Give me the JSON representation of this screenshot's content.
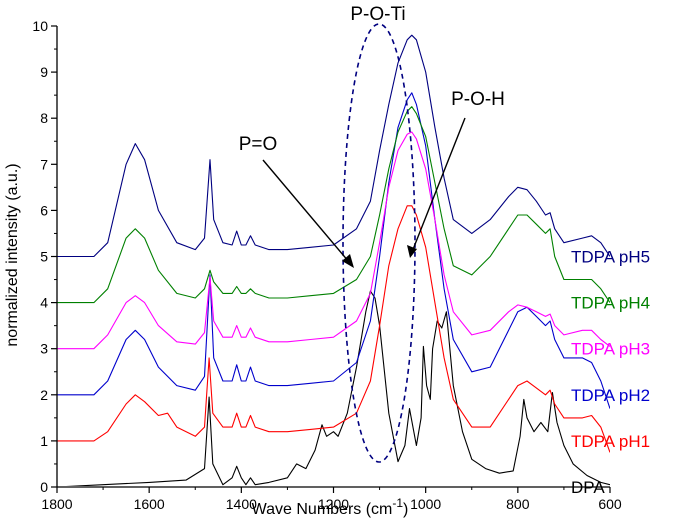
{
  "chart_data": {
    "type": "line",
    "title": "",
    "xlabel": "Wave Numbers (cm",
    "xlabel_sup": "-1",
    "xlabel_suffix": ")",
    "ylabel": "normalized intensity (a.u.)",
    "xlim": [
      1800,
      600
    ],
    "ylim": [
      0,
      10
    ],
    "x_reversed": true,
    "grid": false,
    "legend": "labels at right end of each curve",
    "xticks": [
      1800,
      1600,
      1400,
      1200,
      1000,
      800,
      600
    ],
    "yticks": [
      0,
      1,
      2,
      3,
      4,
      5,
      6,
      7,
      8,
      9,
      10
    ],
    "series": [
      {
        "name": "DPA",
        "color": "#000000",
        "offset": 0,
        "points": [
          [
            1800,
            0
          ],
          [
            1700,
            0.05
          ],
          [
            1600,
            0.1
          ],
          [
            1520,
            0.15
          ],
          [
            1480,
            0.4
          ],
          [
            1470,
            1.95
          ],
          [
            1462,
            0.5
          ],
          [
            1440,
            0.05
          ],
          [
            1420,
            0.2
          ],
          [
            1410,
            0.45
          ],
          [
            1400,
            0.2
          ],
          [
            1390,
            0.05
          ],
          [
            1380,
            0.2
          ],
          [
            1370,
            0.05
          ],
          [
            1340,
            0.1
          ],
          [
            1300,
            0.2
          ],
          [
            1280,
            0.5
          ],
          [
            1260,
            0.4
          ],
          [
            1240,
            0.8
          ],
          [
            1225,
            1.35
          ],
          [
            1215,
            1.1
          ],
          [
            1200,
            1.2
          ],
          [
            1190,
            1.1
          ],
          [
            1170,
            1.6
          ],
          [
            1150,
            2.6
          ],
          [
            1130,
            3.8
          ],
          [
            1120,
            4.25
          ],
          [
            1110,
            4.1
          ],
          [
            1100,
            3.5
          ],
          [
            1080,
            1.6
          ],
          [
            1060,
            0.55
          ],
          [
            1045,
            0.9
          ],
          [
            1035,
            1.7
          ],
          [
            1020,
            0.9
          ],
          [
            1010,
            1.5
          ],
          [
            1005,
            3.05
          ],
          [
            998,
            2.2
          ],
          [
            990,
            1.9
          ],
          [
            985,
            3.0
          ],
          [
            975,
            3.6
          ],
          [
            965,
            3.45
          ],
          [
            955,
            3.8
          ],
          [
            940,
            2.2
          ],
          [
            920,
            1.2
          ],
          [
            900,
            0.6
          ],
          [
            870,
            0.4
          ],
          [
            840,
            0.3
          ],
          [
            810,
            0.35
          ],
          [
            795,
            1.1
          ],
          [
            787,
            1.9
          ],
          [
            780,
            1.5
          ],
          [
            765,
            1.2
          ],
          [
            750,
            1.4
          ],
          [
            735,
            1.2
          ],
          [
            725,
            2.05
          ],
          [
            715,
            1.4
          ],
          [
            700,
            0.9
          ],
          [
            680,
            0.5
          ],
          [
            650,
            0.25
          ],
          [
            620,
            0.1
          ],
          [
            600,
            0.05
          ]
        ]
      },
      {
        "name": "TDPA pH1",
        "color": "#ff0000",
        "offset": 1,
        "points": [
          [
            1800,
            0
          ],
          [
            1720,
            0
          ],
          [
            1690,
            0.2
          ],
          [
            1650,
            0.8
          ],
          [
            1630,
            1.0
          ],
          [
            1610,
            0.85
          ],
          [
            1580,
            0.55
          ],
          [
            1560,
            0.6
          ],
          [
            1540,
            0.3
          ],
          [
            1500,
            0.1
          ],
          [
            1480,
            0.3
          ],
          [
            1470,
            1.8
          ],
          [
            1462,
            0.6
          ],
          [
            1440,
            0.3
          ],
          [
            1420,
            0.3
          ],
          [
            1410,
            0.6
          ],
          [
            1400,
            0.3
          ],
          [
            1390,
            0.3
          ],
          [
            1380,
            0.55
          ],
          [
            1370,
            0.3
          ],
          [
            1340,
            0.2
          ],
          [
            1300,
            0.2
          ],
          [
            1250,
            0.25
          ],
          [
            1200,
            0.3
          ],
          [
            1150,
            0.6
          ],
          [
            1120,
            1.3
          ],
          [
            1100,
            2.5
          ],
          [
            1080,
            3.8
          ],
          [
            1060,
            4.6
          ],
          [
            1040,
            5.1
          ],
          [
            1030,
            5.1
          ],
          [
            1020,
            4.9
          ],
          [
            1000,
            4.2
          ],
          [
            980,
            3.0
          ],
          [
            960,
            1.8
          ],
          [
            940,
            0.9
          ],
          [
            900,
            0.3
          ],
          [
            860,
            0.3
          ],
          [
            820,
            0.9
          ],
          [
            800,
            1.2
          ],
          [
            780,
            1.3
          ],
          [
            760,
            1.15
          ],
          [
            740,
            1.0
          ],
          [
            730,
            1.1
          ],
          [
            720,
            0.8
          ],
          [
            700,
            0.5
          ],
          [
            660,
            0.5
          ],
          [
            640,
            0.55
          ],
          [
            620,
            0.3
          ],
          [
            600,
            -0.25
          ]
        ]
      },
      {
        "name": "TDPA pH2",
        "color": "#0000cc",
        "offset": 2,
        "points": [
          [
            1800,
            0
          ],
          [
            1720,
            0
          ],
          [
            1690,
            0.3
          ],
          [
            1650,
            1.2
          ],
          [
            1630,
            1.4
          ],
          [
            1610,
            1.2
          ],
          [
            1580,
            0.6
          ],
          [
            1540,
            0.2
          ],
          [
            1500,
            0.1
          ],
          [
            1480,
            0.4
          ],
          [
            1468,
            2.6
          ],
          [
            1460,
            0.8
          ],
          [
            1440,
            0.3
          ],
          [
            1420,
            0.3
          ],
          [
            1410,
            0.65
          ],
          [
            1400,
            0.3
          ],
          [
            1390,
            0.3
          ],
          [
            1380,
            0.6
          ],
          [
            1370,
            0.3
          ],
          [
            1340,
            0.2
          ],
          [
            1300,
            0.2
          ],
          [
            1250,
            0.25
          ],
          [
            1200,
            0.3
          ],
          [
            1150,
            0.7
          ],
          [
            1120,
            1.6
          ],
          [
            1100,
            3.0
          ],
          [
            1080,
            4.6
          ],
          [
            1060,
            5.8
          ],
          [
            1040,
            6.4
          ],
          [
            1030,
            6.55
          ],
          [
            1020,
            6.3
          ],
          [
            1000,
            5.4
          ],
          [
            980,
            3.8
          ],
          [
            960,
            2.3
          ],
          [
            940,
            1.2
          ],
          [
            900,
            0.5
          ],
          [
            860,
            0.6
          ],
          [
            820,
            1.4
          ],
          [
            800,
            1.8
          ],
          [
            780,
            1.9
          ],
          [
            760,
            1.7
          ],
          [
            740,
            1.5
          ],
          [
            730,
            1.6
          ],
          [
            720,
            1.2
          ],
          [
            700,
            0.8
          ],
          [
            660,
            0.8
          ],
          [
            640,
            0.7
          ],
          [
            620,
            0.3
          ],
          [
            600,
            -0.3
          ]
        ]
      },
      {
        "name": "TDPA pH3",
        "color": "#ff00ff",
        "offset": 3,
        "points": [
          [
            1800,
            0
          ],
          [
            1720,
            0
          ],
          [
            1690,
            0.3
          ],
          [
            1650,
            1.0
          ],
          [
            1630,
            1.15
          ],
          [
            1610,
            1.0
          ],
          [
            1580,
            0.5
          ],
          [
            1540,
            0.15
          ],
          [
            1500,
            0.1
          ],
          [
            1480,
            0.35
          ],
          [
            1468,
            1.55
          ],
          [
            1460,
            0.6
          ],
          [
            1440,
            0.25
          ],
          [
            1420,
            0.25
          ],
          [
            1410,
            0.5
          ],
          [
            1400,
            0.25
          ],
          [
            1390,
            0.25
          ],
          [
            1380,
            0.45
          ],
          [
            1370,
            0.25
          ],
          [
            1340,
            0.15
          ],
          [
            1300,
            0.15
          ],
          [
            1250,
            0.2
          ],
          [
            1200,
            0.25
          ],
          [
            1150,
            0.6
          ],
          [
            1120,
            1.2
          ],
          [
            1100,
            2.3
          ],
          [
            1080,
            3.5
          ],
          [
            1060,
            4.3
          ],
          [
            1040,
            4.65
          ],
          [
            1030,
            4.7
          ],
          [
            1020,
            4.55
          ],
          [
            1000,
            3.9
          ],
          [
            980,
            2.8
          ],
          [
            960,
            1.6
          ],
          [
            940,
            0.8
          ],
          [
            900,
            0.3
          ],
          [
            860,
            0.4
          ],
          [
            820,
            0.8
          ],
          [
            800,
            0.95
          ],
          [
            780,
            0.9
          ],
          [
            760,
            0.8
          ],
          [
            740,
            0.7
          ],
          [
            730,
            0.75
          ],
          [
            720,
            0.5
          ],
          [
            700,
            0.3
          ],
          [
            660,
            0.4
          ],
          [
            640,
            0.4
          ],
          [
            620,
            0.2
          ],
          [
            600,
            0.05
          ]
        ]
      },
      {
        "name": "TDPA pH4",
        "color": "#008000",
        "offset": 4,
        "points": [
          [
            1800,
            0
          ],
          [
            1720,
            0
          ],
          [
            1690,
            0.3
          ],
          [
            1650,
            1.4
          ],
          [
            1630,
            1.6
          ],
          [
            1610,
            1.4
          ],
          [
            1580,
            0.7
          ],
          [
            1540,
            0.2
          ],
          [
            1500,
            0.1
          ],
          [
            1480,
            0.3
          ],
          [
            1468,
            0.7
          ],
          [
            1460,
            0.45
          ],
          [
            1440,
            0.2
          ],
          [
            1420,
            0.2
          ],
          [
            1410,
            0.35
          ],
          [
            1400,
            0.2
          ],
          [
            1390,
            0.2
          ],
          [
            1380,
            0.3
          ],
          [
            1370,
            0.2
          ],
          [
            1340,
            0.1
          ],
          [
            1300,
            0.1
          ],
          [
            1250,
            0.15
          ],
          [
            1200,
            0.2
          ],
          [
            1150,
            0.5
          ],
          [
            1120,
            1.0
          ],
          [
            1100,
            1.9
          ],
          [
            1080,
            2.9
          ],
          [
            1060,
            3.7
          ],
          [
            1040,
            4.15
          ],
          [
            1030,
            4.25
          ],
          [
            1020,
            4.1
          ],
          [
            1000,
            3.6
          ],
          [
            980,
            2.6
          ],
          [
            960,
            1.6
          ],
          [
            940,
            0.8
          ],
          [
            900,
            0.6
          ],
          [
            860,
            1.0
          ],
          [
            820,
            1.6
          ],
          [
            800,
            1.9
          ],
          [
            780,
            1.9
          ],
          [
            760,
            1.7
          ],
          [
            740,
            1.5
          ],
          [
            730,
            1.6
          ],
          [
            720,
            1.0
          ],
          [
            700,
            0.5
          ],
          [
            660,
            0.5
          ],
          [
            640,
            0.5
          ],
          [
            620,
            0.3
          ],
          [
            600,
            0
          ]
        ]
      },
      {
        "name": "TDPA pH5",
        "color": "#000080",
        "offset": 5,
        "points": [
          [
            1800,
            0
          ],
          [
            1720,
            0
          ],
          [
            1690,
            0.3
          ],
          [
            1650,
            2.0
          ],
          [
            1630,
            2.45
          ],
          [
            1610,
            2.1
          ],
          [
            1580,
            1.0
          ],
          [
            1540,
            0.3
          ],
          [
            1500,
            0.15
          ],
          [
            1480,
            0.4
          ],
          [
            1468,
            2.1
          ],
          [
            1460,
            0.8
          ],
          [
            1440,
            0.3
          ],
          [
            1420,
            0.25
          ],
          [
            1410,
            0.55
          ],
          [
            1400,
            0.25
          ],
          [
            1390,
            0.25
          ],
          [
            1380,
            0.45
          ],
          [
            1370,
            0.25
          ],
          [
            1340,
            0.15
          ],
          [
            1300,
            0.15
          ],
          [
            1250,
            0.2
          ],
          [
            1200,
            0.25
          ],
          [
            1150,
            0.6
          ],
          [
            1120,
            1.2
          ],
          [
            1100,
            2.3
          ],
          [
            1080,
            3.3
          ],
          [
            1060,
            4.2
          ],
          [
            1040,
            4.7
          ],
          [
            1030,
            4.8
          ],
          [
            1020,
            4.7
          ],
          [
            1000,
            4.0
          ],
          [
            980,
            2.8
          ],
          [
            960,
            1.7
          ],
          [
            940,
            0.8
          ],
          [
            900,
            0.5
          ],
          [
            860,
            0.8
          ],
          [
            820,
            1.3
          ],
          [
            800,
            1.5
          ],
          [
            780,
            1.45
          ],
          [
            760,
            1.2
          ],
          [
            740,
            0.9
          ],
          [
            730,
            0.95
          ],
          [
            720,
            0.6
          ],
          [
            700,
            0.3
          ],
          [
            660,
            0.4
          ],
          [
            640,
            0.45
          ],
          [
            620,
            0.3
          ],
          [
            600,
            0
          ]
        ]
      }
    ],
    "annotations": [
      {
        "id": "p-o-ti",
        "text": "P-O-Ti"
      },
      {
        "id": "p-eq-o",
        "text": "P=O"
      },
      {
        "id": "p-o-h",
        "text": "P-O-H"
      }
    ]
  }
}
